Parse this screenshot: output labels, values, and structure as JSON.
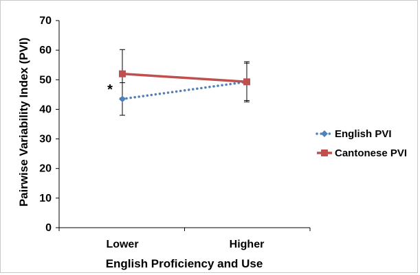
{
  "chart_data": {
    "type": "line",
    "title": "",
    "xlabel": "English Proficiency and Use",
    "ylabel": "Pairwise Variability Index (PVI)",
    "categories": [
      "Lower",
      "Higher"
    ],
    "ylim": [
      0,
      70
    ],
    "yticks": [
      0,
      10,
      20,
      30,
      40,
      50,
      60,
      70
    ],
    "yticklabels": [
      "0",
      "10",
      "20",
      "30",
      "40",
      "50",
      "60",
      "70"
    ],
    "grid": false,
    "legend_position": "right",
    "series": [
      {
        "name": "English PVI",
        "values": [
          43.5,
          49.3
        ],
        "error": [
          [
            5.5,
            5.5
          ],
          [
            6.8,
            6.8
          ]
        ],
        "color": "#4f81bd",
        "line_style": "dotted",
        "marker": "diamond"
      },
      {
        "name": "Cantonese PVI",
        "values": [
          52.0,
          49.3
        ],
        "error": [
          [
            8.2,
            8.2
          ],
          [
            6.3,
            6.3
          ]
        ],
        "color": "#c0504d",
        "line_style": "solid",
        "marker": "square"
      }
    ],
    "annotations": [
      {
        "text": "*",
        "category": "Lower",
        "y": 47
      }
    ]
  }
}
